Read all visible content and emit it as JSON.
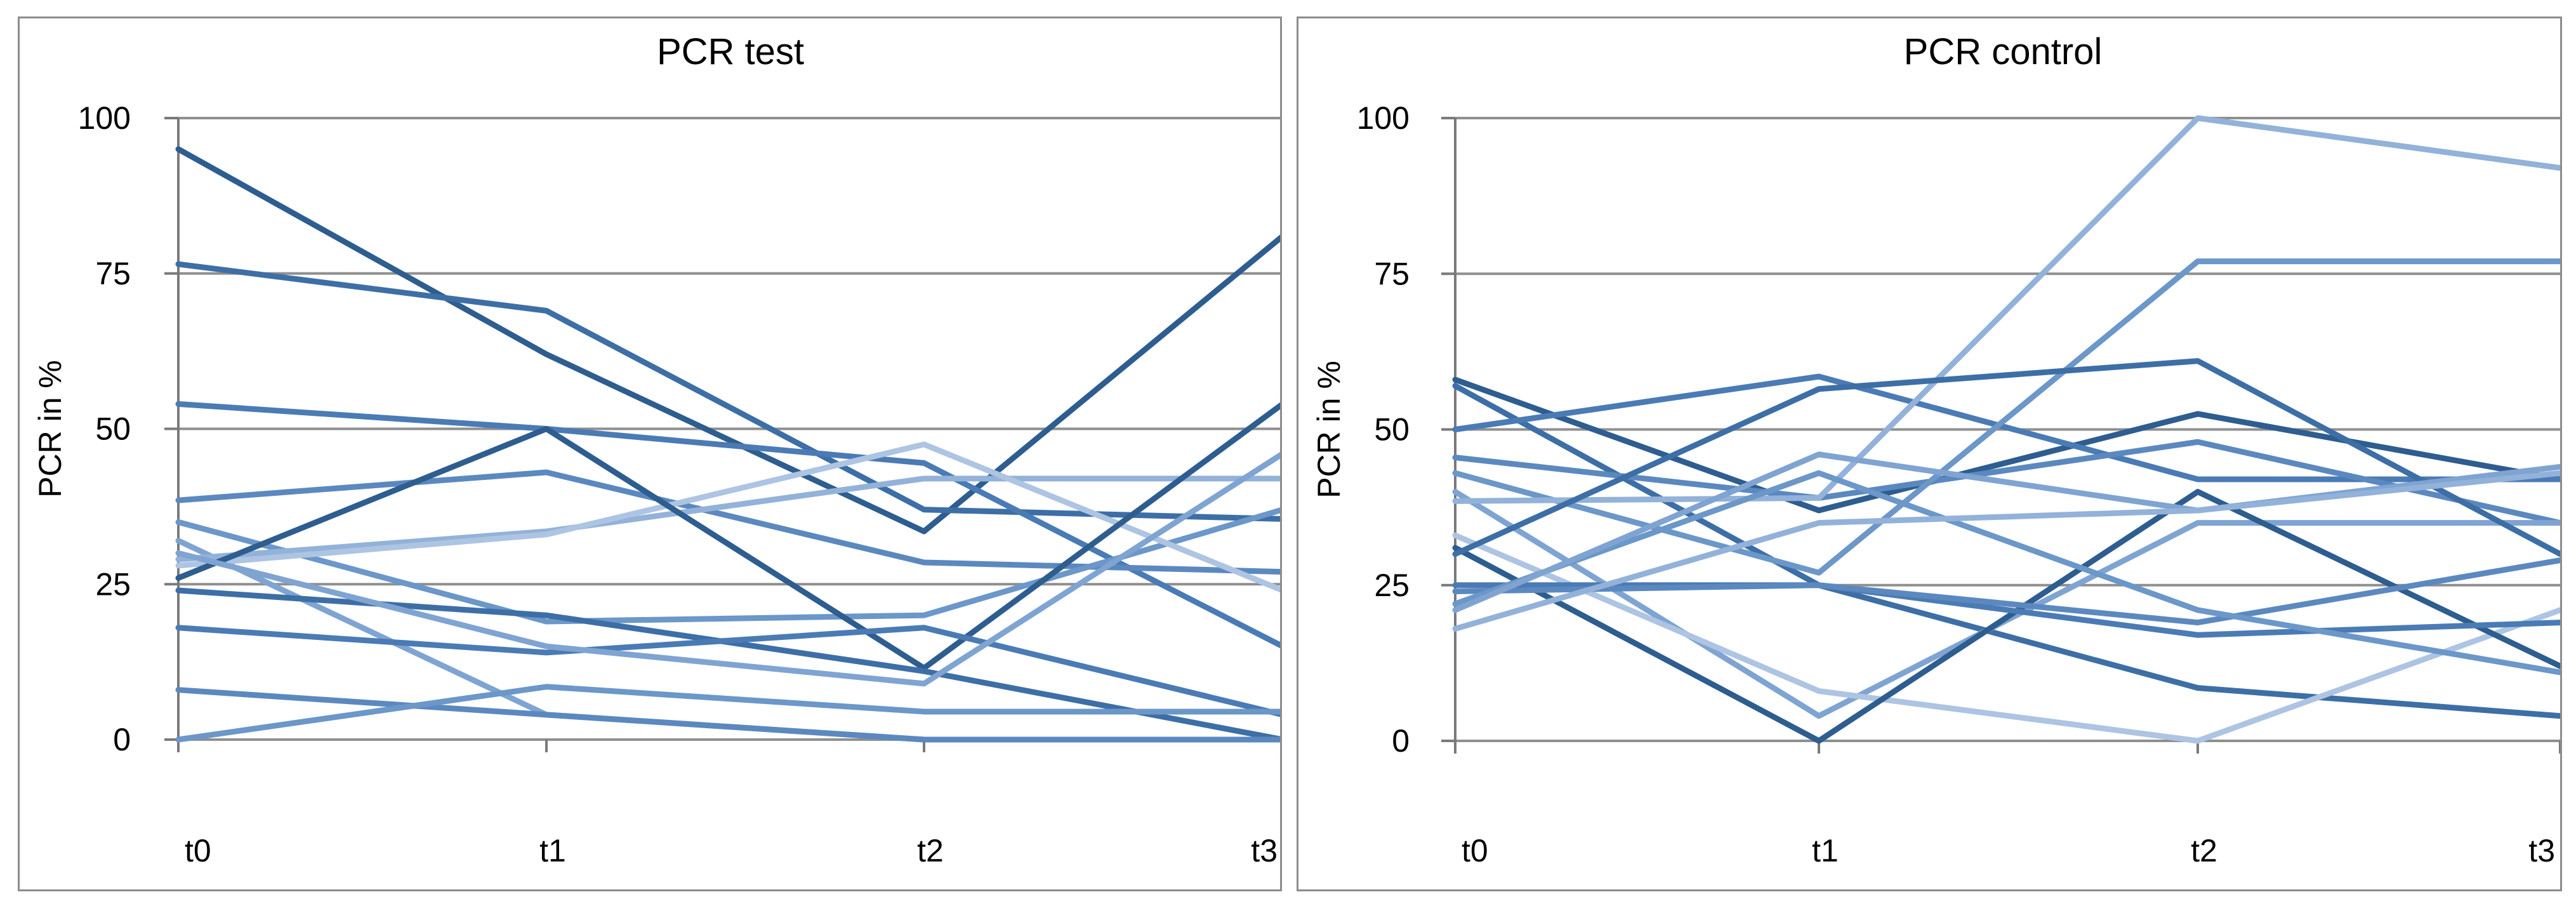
{
  "palette": [
    "#2e5d8f",
    "#3d6fa6",
    "#4a7bb5",
    "#5b89bf",
    "#6b97c9",
    "#7fa4d2",
    "#93b2d9",
    "#adc4e3"
  ],
  "chart_data": [
    {
      "type": "line",
      "title": "PCR test",
      "xlabel": "",
      "ylabel": "PCR in %",
      "categories": [
        "t0",
        "t1",
        "t2",
        "t3"
      ],
      "ylim": [
        0,
        100
      ],
      "yticks": [
        "0",
        "25",
        "50",
        "75",
        "100"
      ],
      "grid": true,
      "legend": "none",
      "series": [
        {
          "values": [
            95,
            62,
            33.5,
            81
          ]
        },
        {
          "values": [
            76.5,
            69,
            37,
            35.5
          ]
        },
        {
          "values": [
            54,
            50,
            44.5,
            15
          ]
        },
        {
          "values": [
            38.5,
            43,
            28.5,
            27
          ]
        },
        {
          "values": [
            35,
            19,
            20,
            37
          ]
        },
        {
          "values": [
            32,
            4,
            0,
            0
          ]
        },
        {
          "values": [
            29,
            33.5,
            42,
            42
          ]
        },
        {
          "values": [
            28,
            33,
            47.5,
            24
          ]
        },
        {
          "values": [
            26,
            50,
            11.5,
            54
          ]
        },
        {
          "values": [
            24,
            20,
            11,
            0
          ]
        },
        {
          "values": [
            18,
            14,
            18,
            4
          ]
        },
        {
          "values": [
            8,
            4,
            0,
            0
          ]
        },
        {
          "values": [
            0,
            8.5,
            4.5,
            4.5
          ]
        },
        {
          "values": [
            30,
            15,
            9,
            46
          ]
        }
      ]
    },
    {
      "type": "line",
      "title": "PCR control",
      "xlabel": "",
      "ylabel": "PCR in %",
      "categories": [
        "t0",
        "t1",
        "t2",
        "t3"
      ],
      "ylim": [
        0,
        100
      ],
      "yticks": [
        "0",
        "25",
        "50",
        "75",
        "100"
      ],
      "grid": true,
      "legend": "none",
      "series": [
        {
          "values": [
            58,
            37,
            52.5,
            42
          ]
        },
        {
          "values": [
            57,
            25,
            8.5,
            4
          ]
        },
        {
          "values": [
            50,
            58.5,
            42,
            42
          ]
        },
        {
          "values": [
            45.5,
            39,
            48,
            35
          ]
        },
        {
          "values": [
            43,
            27,
            77,
            77
          ]
        },
        {
          "values": [
            40,
            4,
            35,
            35
          ]
        },
        {
          "values": [
            38.5,
            39,
            100,
            92
          ]
        },
        {
          "values": [
            33,
            8,
            0,
            21
          ]
        },
        {
          "values": [
            31,
            0,
            40,
            12
          ]
        },
        {
          "values": [
            30,
            56.5,
            61,
            30
          ]
        },
        {
          "values": [
            25,
            25,
            17,
            19
          ]
        },
        {
          "values": [
            24,
            25,
            19,
            29
          ]
        },
        {
          "values": [
            22,
            43,
            21,
            11
          ]
        },
        {
          "values": [
            21,
            46,
            37,
            44
          ]
        },
        {
          "values": [
            18,
            35,
            37,
            43
          ]
        }
      ]
    }
  ]
}
